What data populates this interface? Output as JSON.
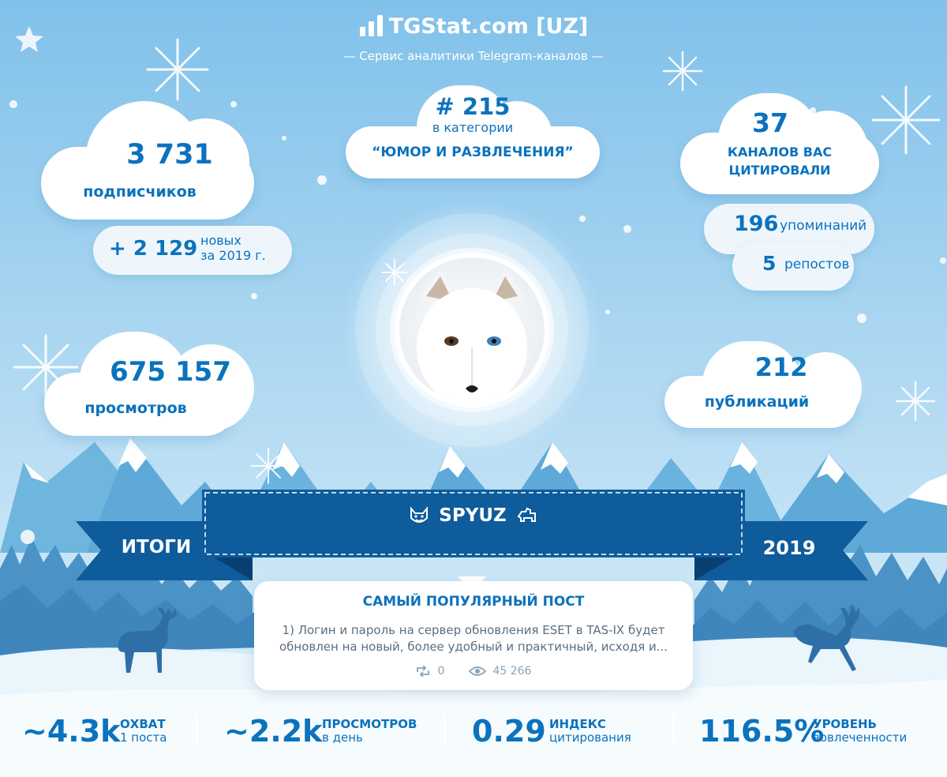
{
  "header": {
    "title": "TGStat.com [UZ]",
    "subtitle": "— Сервис аналитики Telegram-каналов —"
  },
  "subscribers": {
    "value": "3 731",
    "label": "подписчиков"
  },
  "new_subscribers": {
    "value": "+ 2 129",
    "label_line1": "новых",
    "label_line2": "за 2019 г."
  },
  "views": {
    "value": "675 157",
    "label": "просмотров"
  },
  "rank": {
    "value": "# 215",
    "label": "в категории",
    "category": "“ЮМОР И РАЗВЛЕЧЕНИЯ”"
  },
  "citations": {
    "value": "37",
    "label_line1": "КАНАЛОВ ВАС",
    "label_line2": "ЦИТИРОВАЛИ"
  },
  "mentions": {
    "value": "196",
    "label": "упоминаний"
  },
  "reposts": {
    "value": "5",
    "label": "репостов"
  },
  "publications": {
    "value": "212",
    "label": "публикаций"
  },
  "banner": {
    "channel_name": "SPYUZ",
    "left_label": "ИТОГИ",
    "right_label": "2019",
    "left_emoji": "cat-emoji",
    "right_emoji": "dog-emoji"
  },
  "popular_post": {
    "title": "САМЫЙ ПОПУЛЯРНЫЙ ПОСТ",
    "text_line1": "1) Логин и пароль на сервер обновления ESET в TAS-IX будет",
    "text_line2": "обновлен на новый, более удобный и практичный, исходя и...",
    "reposts": "0",
    "views": "45 266"
  },
  "bottom_stats": [
    {
      "value": "~4.3k",
      "title": "ОХВАТ",
      "subtitle": "1 поста"
    },
    {
      "value": "~2.2k",
      "title": "ПРОСМОТРОВ",
      "subtitle": "в день"
    },
    {
      "value": "0.29",
      "title": "ИНДЕКС",
      "subtitle": "цитирования"
    },
    {
      "value": "116.5%",
      "title": "УРОВЕНЬ",
      "subtitle": "вовлеченности"
    }
  ],
  "colors": {
    "sky": "#8cc6ea",
    "accent": "#0b72bd",
    "banner": "#0e5c9c",
    "banner_dark": "#0a3f73",
    "mountain": "#6db3dd",
    "snow": "#ffffff"
  }
}
